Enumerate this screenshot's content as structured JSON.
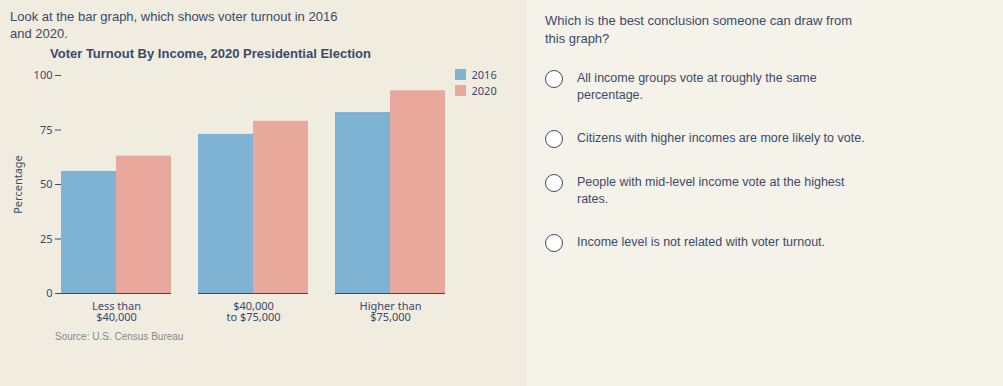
{
  "chart_data": {
    "type": "bar",
    "title": "Voter Turnout By Income, 2020 Presidential Election",
    "ylabel": "Percentage",
    "categories": [
      "Less than\n$40,000",
      "$40,000\nto $75,000",
      "Higher than\n$75,000"
    ],
    "series": [
      {
        "name": "2016",
        "color": "#7fb3d3",
        "values": [
          56,
          73,
          83
        ]
      },
      {
        "name": "2020",
        "color": "#e8a89c",
        "values": [
          63,
          79,
          93
        ]
      }
    ],
    "ylim": [
      0,
      100
    ],
    "yticks": [
      0,
      25,
      50,
      75,
      100
    ],
    "grid": false,
    "legend": "upper right",
    "annotations": [
      "Look at the bar graph, which shows voter turnout in 2016\nand 2020.",
      "Source: U.S. Census Bureau",
      "Which is the best conclusion someone can draw from\nthis graph?",
      "All income groups vote at roughly the same\npercentage.",
      "Citizens with higher incomes are more likely to vote.",
      "People with mid-level income vote at the highest\nrates.",
      "Income level is not related with voter turnout."
    ]
  }
}
